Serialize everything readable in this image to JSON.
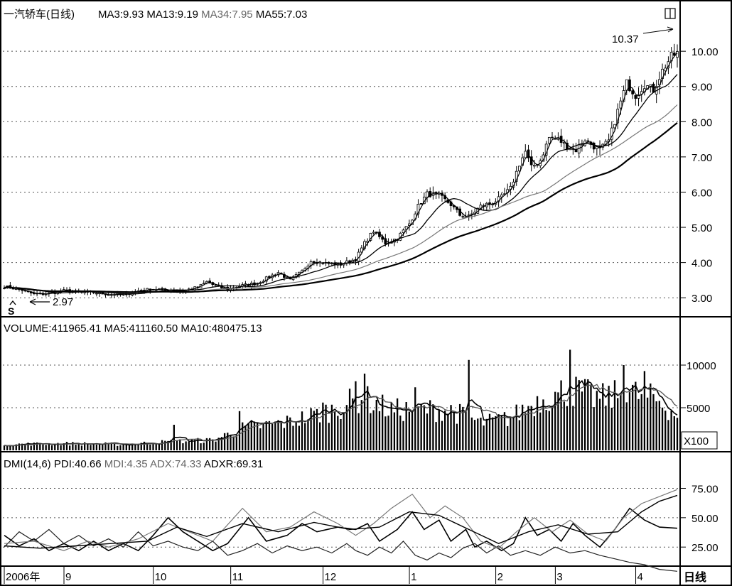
{
  "chart_data": [
    {
      "type": "candlestick",
      "panel": "price",
      "header": {
        "stock_name": "一汽轿车(日线)",
        "ma": [
          {
            "label": "MA3:9.93",
            "color": "#000000"
          },
          {
            "label": "MA13:9.19",
            "color": "#000000"
          },
          {
            "label": "MA34:7.95",
            "color": "#666666"
          },
          {
            "label": "MA55:7.03",
            "color": "#000000"
          }
        ]
      },
      "ylim": [
        2.5,
        10.85
      ],
      "yticks": [
        {
          "value": 3,
          "label": "3.00"
        },
        {
          "value": 4,
          "label": "4.00"
        },
        {
          "value": 5,
          "label": "5.00"
        },
        {
          "value": 6,
          "label": "6.00"
        },
        {
          "value": 7,
          "label": "7.00"
        },
        {
          "value": 8,
          "label": "8.00"
        },
        {
          "value": 9,
          "label": "9.00"
        },
        {
          "value": 10,
          "label": "10.00"
        }
      ],
      "annotations": [
        {
          "text": "10.37",
          "kind": "high",
          "value": 10.37
        },
        {
          "text": "2.97",
          "kind": "low",
          "value": 2.97
        }
      ],
      "marker": "S",
      "close_points": [
        [
          0,
          3.32
        ],
        [
          6,
          3.22
        ],
        [
          10,
          3.1
        ],
        [
          15,
          3.12
        ],
        [
          20,
          3.2
        ],
        [
          25,
          3.16
        ],
        [
          30,
          3.15
        ],
        [
          35,
          3.1
        ],
        [
          40,
          3.08
        ],
        [
          45,
          3.2
        ],
        [
          50,
          3.25
        ],
        [
          55,
          3.22
        ],
        [
          60,
          3.2
        ],
        [
          65,
          3.3
        ],
        [
          68,
          3.45
        ],
        [
          72,
          3.3
        ],
        [
          75,
          3.25
        ],
        [
          80,
          3.35
        ],
        [
          85,
          3.42
        ],
        [
          88,
          3.55
        ],
        [
          92,
          3.72
        ],
        [
          96,
          3.5
        ],
        [
          100,
          3.75
        ],
        [
          103,
          4.05
        ],
        [
          108,
          3.98
        ],
        [
          113,
          3.95
        ],
        [
          118,
          4.1
        ],
        [
          121,
          4.55
        ],
        [
          124,
          4.9
        ],
        [
          128,
          4.55
        ],
        [
          132,
          4.7
        ],
        [
          136,
          5.1
        ],
        [
          139,
          5.6
        ],
        [
          142,
          5.95
        ],
        [
          146,
          5.9
        ],
        [
          150,
          5.65
        ],
        [
          153,
          5.35
        ],
        [
          156,
          5.3
        ],
        [
          160,
          5.6
        ],
        [
          164,
          5.7
        ],
        [
          167,
          5.85
        ],
        [
          170,
          6.1
        ],
        [
          173,
          6.8
        ],
        [
          175,
          7.15
        ],
        [
          177,
          6.7
        ],
        [
          180,
          6.9
        ],
        [
          183,
          7.55
        ],
        [
          186,
          7.5
        ],
        [
          189,
          7.3
        ],
        [
          192,
          7.2
        ],
        [
          195,
          7.5
        ],
        [
          198,
          7.3
        ],
        [
          200,
          7.2
        ],
        [
          203,
          7.45
        ],
        [
          206,
          8.3
        ],
        [
          209,
          9.1
        ],
        [
          212,
          8.75
        ],
        [
          215,
          9.05
        ],
        [
          218,
          8.9
        ],
        [
          221,
          9.45
        ],
        [
          224,
          9.85
        ],
        [
          226,
          9.95
        ]
      ],
      "n_bars": 227
    },
    {
      "type": "bar+line",
      "panel": "volume",
      "header": {
        "labels": [
          {
            "label": "VOLUME:411965.41",
            "color": "#000000"
          },
          {
            "label": "MA5:411160.50",
            "color": "#000000"
          },
          {
            "label": "MA10:480475.13",
            "color": "#000000"
          }
        ]
      },
      "ylim": [
        0,
        13000
      ],
      "yticks": [
        {
          "value": 5000,
          "label": "5000"
        },
        {
          "value": 10000,
          "label": "10000"
        }
      ],
      "unit_label": "X100",
      "volume_points": [
        [
          0,
          700
        ],
        [
          20,
          800
        ],
        [
          40,
          700
        ],
        [
          55,
          1000
        ],
        [
          70,
          1200
        ],
        [
          80,
          2600
        ],
        [
          95,
          3300
        ],
        [
          110,
          4700
        ],
        [
          120,
          6200
        ],
        [
          130,
          4700
        ],
        [
          140,
          4800
        ],
        [
          150,
          4700
        ],
        [
          160,
          3200
        ],
        [
          170,
          3800
        ],
        [
          180,
          6000
        ],
        [
          190,
          7200
        ],
        [
          200,
          6000
        ],
        [
          210,
          6800
        ],
        [
          220,
          5800
        ],
        [
          226,
          4100
        ]
      ],
      "spikes": [
        [
          57,
          3000
        ],
        [
          79,
          4600
        ],
        [
          107,
          5600
        ],
        [
          118,
          8100
        ],
        [
          121,
          9000
        ],
        [
          138,
          7400
        ],
        [
          156,
          10600
        ],
        [
          186,
          6800
        ],
        [
          190,
          11800
        ],
        [
          208,
          10000
        ],
        [
          215,
          9300
        ]
      ]
    },
    {
      "type": "line",
      "panel": "dmi",
      "header": {
        "labels": [
          {
            "label": "DMI(14,6)",
            "color": "#000000"
          },
          {
            "label": "PDI:40.66",
            "color": "#000000"
          },
          {
            "label": "MDI:4.35",
            "color": "#666666"
          },
          {
            "label": "ADX:74.33",
            "color": "#666666"
          },
          {
            "label": "ADXR:69.31",
            "color": "#000000"
          }
        ]
      },
      "ylim": [
        10,
        88
      ],
      "yticks": [
        {
          "value": 25,
          "label": "25.00"
        },
        {
          "value": 50,
          "label": "50.00"
        },
        {
          "value": 75,
          "label": "75.00"
        }
      ],
      "series": [
        {
          "name": "PDI",
          "color": "#000000",
          "width": 1.6,
          "points": [
            [
              0,
              35
            ],
            [
              5,
              26
            ],
            [
              10,
              32
            ],
            [
              15,
              22
            ],
            [
              20,
              28
            ],
            [
              25,
              22
            ],
            [
              30,
              30
            ],
            [
              35,
              22
            ],
            [
              40,
              28
            ],
            [
              45,
              22
            ],
            [
              50,
              35
            ],
            [
              55,
              50
            ],
            [
              60,
              38
            ],
            [
              65,
              30
            ],
            [
              70,
              22
            ],
            [
              75,
              28
            ],
            [
              82,
              50
            ],
            [
              88,
              30
            ],
            [
              95,
              35
            ],
            [
              100,
              45
            ],
            [
              105,
              38
            ],
            [
              112,
              42
            ],
            [
              118,
              40
            ],
            [
              122,
              45
            ],
            [
              126,
              30
            ],
            [
              132,
              40
            ],
            [
              137,
              55
            ],
            [
              141,
              40
            ],
            [
              146,
              48
            ],
            [
              150,
              30
            ],
            [
              155,
              40
            ],
            [
              158,
              25
            ],
            [
              162,
              30
            ],
            [
              167,
              22
            ],
            [
              171,
              28
            ],
            [
              175,
              50
            ],
            [
              179,
              35
            ],
            [
              183,
              40
            ],
            [
              187,
              30
            ],
            [
              191,
              45
            ],
            [
              195,
              35
            ],
            [
              200,
              25
            ],
            [
              205,
              40
            ],
            [
              210,
              58
            ],
            [
              215,
              48
            ],
            [
              220,
              42
            ],
            [
              226,
              41
            ]
          ]
        },
        {
          "name": "MDI",
          "color": "#222222",
          "width": 1.2,
          "points": [
            [
              0,
              25
            ],
            [
              5,
              38
            ],
            [
              10,
              30
            ],
            [
              15,
              40
            ],
            [
              20,
              28
            ],
            [
              25,
              35
            ],
            [
              30,
              26
            ],
            [
              35,
              32
            ],
            [
              40,
              25
            ],
            [
              45,
              38
            ],
            [
              50,
              26
            ],
            [
              55,
              30
            ],
            [
              60,
              25
            ],
            [
              65,
              22
            ],
            [
              70,
              30
            ],
            [
              75,
              18
            ],
            [
              80,
              22
            ],
            [
              85,
              28
            ],
            [
              90,
              20
            ],
            [
              95,
              26
            ],
            [
              100,
              22
            ],
            [
              105,
              25
            ],
            [
              110,
              20
            ],
            [
              115,
              28
            ],
            [
              118,
              22
            ],
            [
              122,
              18
            ],
            [
              126,
              25
            ],
            [
              130,
              20
            ],
            [
              134,
              30
            ],
            [
              138,
              18
            ],
            [
              142,
              14
            ],
            [
              146,
              20
            ],
            [
              150,
              16
            ],
            [
              154,
              24
            ],
            [
              158,
              28
            ],
            [
              162,
              20
            ],
            [
              166,
              26
            ],
            [
              170,
              18
            ],
            [
              175,
              22
            ],
            [
              180,
              18
            ],
            [
              185,
              25
            ],
            [
              190,
              20
            ],
            [
              195,
              22
            ],
            [
              200,
              18
            ],
            [
              205,
              15
            ],
            [
              210,
              12
            ],
            [
              215,
              10
            ],
            [
              220,
              6
            ],
            [
              226,
              4.4
            ]
          ]
        },
        {
          "name": "ADX",
          "color": "#777777",
          "width": 1.2,
          "points": [
            [
              0,
              28
            ],
            [
              10,
              30
            ],
            [
              20,
              22
            ],
            [
              28,
              30
            ],
            [
              35,
              25
            ],
            [
              45,
              32
            ],
            [
              55,
              45
            ],
            [
              62,
              38
            ],
            [
              70,
              30
            ],
            [
              80,
              58
            ],
            [
              88,
              38
            ],
            [
              96,
              42
            ],
            [
              104,
              55
            ],
            [
              112,
              45
            ],
            [
              118,
              35
            ],
            [
              124,
              45
            ],
            [
              130,
              58
            ],
            [
              137,
              70
            ],
            [
              143,
              50
            ],
            [
              148,
              60
            ],
            [
              154,
              50
            ],
            [
              160,
              30
            ],
            [
              166,
              24
            ],
            [
              172,
              38
            ],
            [
              178,
              50
            ],
            [
              184,
              38
            ],
            [
              190,
              48
            ],
            [
              196,
              36
            ],
            [
              202,
              30
            ],
            [
              208,
              50
            ],
            [
              214,
              62
            ],
            [
              220,
              68
            ],
            [
              226,
              74
            ]
          ]
        },
        {
          "name": "ADXR",
          "color": "#000000",
          "width": 1.4,
          "points": [
            [
              0,
              26
            ],
            [
              12,
              24
            ],
            [
              24,
              26
            ],
            [
              36,
              28
            ],
            [
              48,
              30
            ],
            [
              58,
              42
            ],
            [
              68,
              34
            ],
            [
              80,
              45
            ],
            [
              92,
              38
            ],
            [
              104,
              46
            ],
            [
              116,
              40
            ],
            [
              126,
              42
            ],
            [
              136,
              55
            ],
            [
              146,
              52
            ],
            [
              156,
              40
            ],
            [
              166,
              28
            ],
            [
              176,
              38
            ],
            [
              186,
              44
            ],
            [
              196,
              36
            ],
            [
              206,
              38
            ],
            [
              214,
              55
            ],
            [
              220,
              64
            ],
            [
              226,
              69
            ]
          ]
        }
      ]
    }
  ],
  "xaxis": {
    "labels": [
      {
        "text": "2006年",
        "bar": 0
      },
      {
        "text": "9",
        "bar": 21
      },
      {
        "text": "10",
        "bar": 51
      },
      {
        "text": "11",
        "bar": 77
      },
      {
        "text": "12",
        "bar": 108
      },
      {
        "text": "1",
        "bar": 137
      },
      {
        "text": "2",
        "bar": 166
      },
      {
        "text": "3",
        "bar": 186
      },
      {
        "text": "4",
        "bar": 213
      }
    ],
    "period_label": "日线"
  }
}
